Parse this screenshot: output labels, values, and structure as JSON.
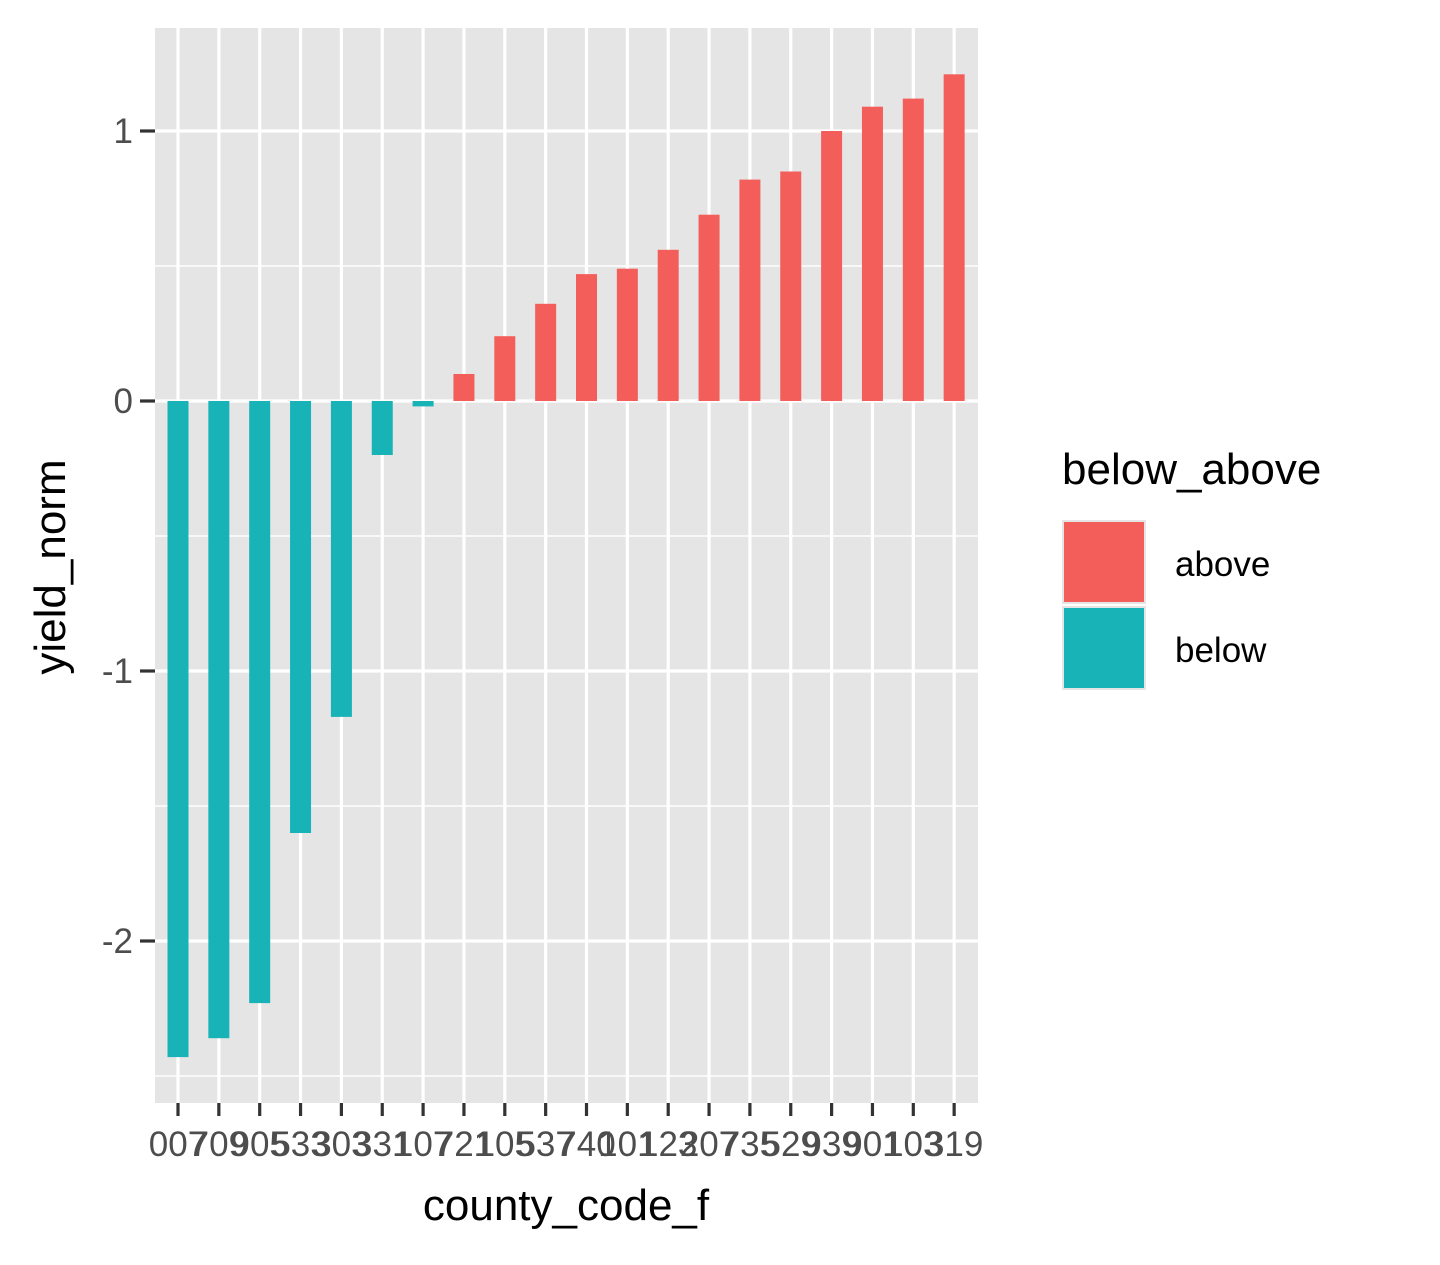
{
  "colors": {
    "panel": "#e5e5e5",
    "grid": "#ffffff",
    "above": "#f35e5a",
    "below": "#17b3b7",
    "axis_text": "#4d4d4d",
    "title_text": "#000000"
  },
  "chart_data": {
    "type": "bar",
    "xlabel": "county_code_f",
    "ylabel": "yield_norm",
    "ylim": [
      -2.5,
      1.4
    ],
    "yticks": [
      -2,
      -1,
      0,
      1
    ],
    "grid": true,
    "legend": {
      "title": "below_above",
      "position": "right",
      "entries": [
        {
          "label": "above",
          "color": "#f35e5a"
        },
        {
          "label": "below",
          "color": "#17b3b7"
        }
      ]
    },
    "categories": [
      "007",
      "709",
      "905",
      "533",
      "303",
      "331",
      "107",
      "721",
      "105",
      "537",
      "740",
      "101",
      "123",
      "207",
      "735",
      "529",
      "939",
      "901",
      "103",
      "319"
    ],
    "values": [
      -2.43,
      -2.36,
      -2.23,
      -1.6,
      -1.17,
      -0.2,
      -0.02,
      0.1,
      0.24,
      0.36,
      0.47,
      0.49,
      0.56,
      0.69,
      0.82,
      0.85,
      1.0,
      1.09,
      1.12,
      1.21
    ],
    "groups": [
      "below",
      "below",
      "below",
      "below",
      "below",
      "below",
      "below",
      "above",
      "above",
      "above",
      "above",
      "above",
      "above",
      "above",
      "above",
      "above",
      "above",
      "above",
      "above",
      "above"
    ]
  }
}
